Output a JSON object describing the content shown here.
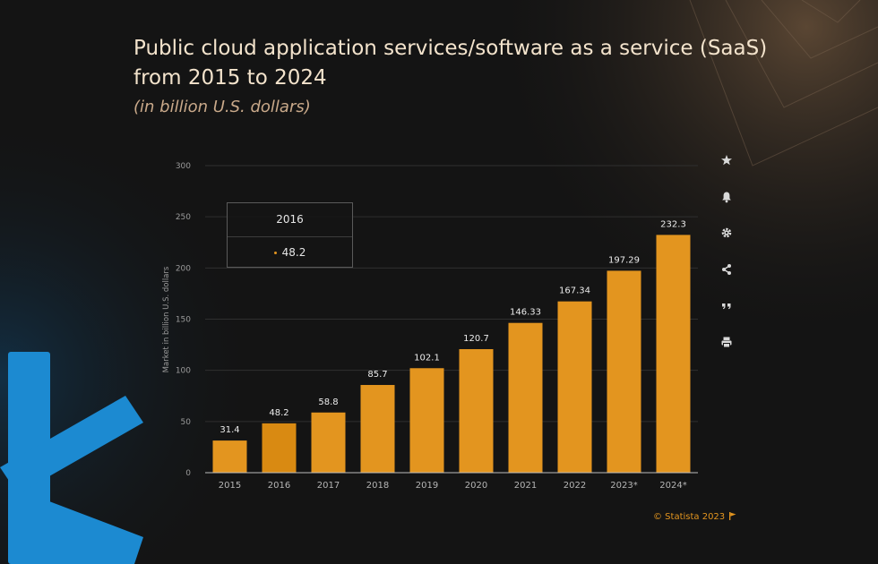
{
  "header": {
    "title": "Public cloud application services/software as a service (SaaS) from 2015 to 2024",
    "subtitle": "(in billion U.S. dollars)"
  },
  "tooltip": {
    "title": "2016",
    "value": "48.2"
  },
  "footer": {
    "copyright": "© Statista 2023"
  },
  "toolbar": {
    "icons": [
      "star-icon",
      "bell-icon",
      "gear-icon",
      "share-icon",
      "quote-icon",
      "print-icon"
    ]
  },
  "colors": {
    "background": "#141414",
    "bar": "#e3951f",
    "bar_highlight": "#d98a12",
    "text": "#cfcfcf",
    "title": "#f3e3cc",
    "logo": "#1c8ad1"
  },
  "chart_data": {
    "type": "bar",
    "categories": [
      "2015",
      "2016",
      "2017",
      "2018",
      "2019",
      "2020",
      "2021",
      "2022",
      "2023*",
      "2024*"
    ],
    "values": [
      31.4,
      48.2,
      58.8,
      85.7,
      102.1,
      120.7,
      146.33,
      167.34,
      197.29,
      232.3
    ],
    "value_labels": [
      "31.4",
      "48.2",
      "58.8",
      "85.7",
      "102.1",
      "120.7",
      "146.33",
      "167.34",
      "197.29",
      "232.3"
    ],
    "title": "Public cloud application services/software as a service (SaaS) from 2015 to 2024",
    "xlabel": "",
    "ylabel": "Market in billion U.S. dollars",
    "ylim": [
      0,
      300
    ],
    "yticks": [
      0,
      50,
      100,
      150,
      200,
      250,
      300
    ],
    "grid": true,
    "legend": "none"
  }
}
